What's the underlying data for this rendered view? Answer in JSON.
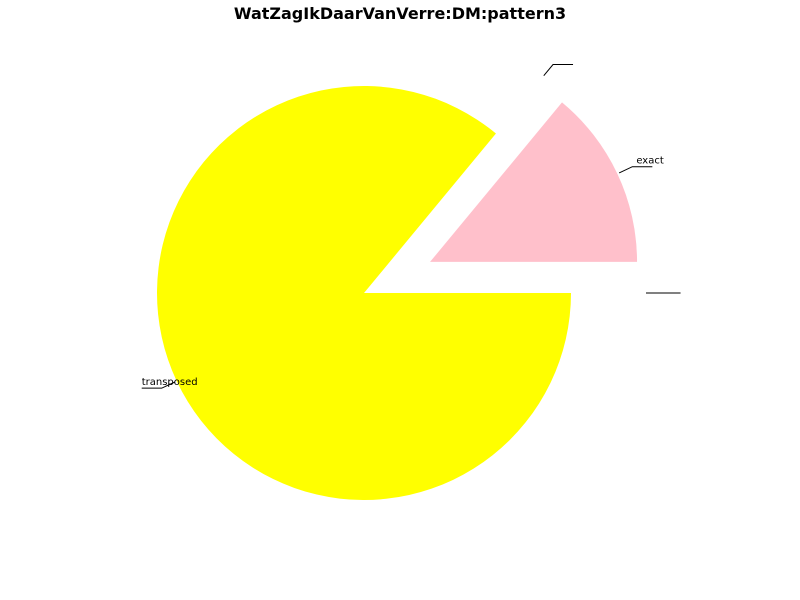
{
  "chart_data": {
    "type": "pie",
    "title": "WatZagIkDaarVanVerre:DM:pattern3",
    "slices": [
      {
        "label": "transposed",
        "value": 86,
        "color": "#ffff00",
        "explode": false
      },
      {
        "label": "",
        "value": 0,
        "color": "#ffffff",
        "explode": true
      },
      {
        "label": "exact",
        "value": 14,
        "color": "#ffc0cb",
        "explode": true
      },
      {
        "label": "",
        "value": 0,
        "color": "#ffffff",
        "explode": true
      }
    ],
    "start_angle_deg": 0,
    "direction": "clockwise",
    "legend": "none",
    "grid": false
  }
}
